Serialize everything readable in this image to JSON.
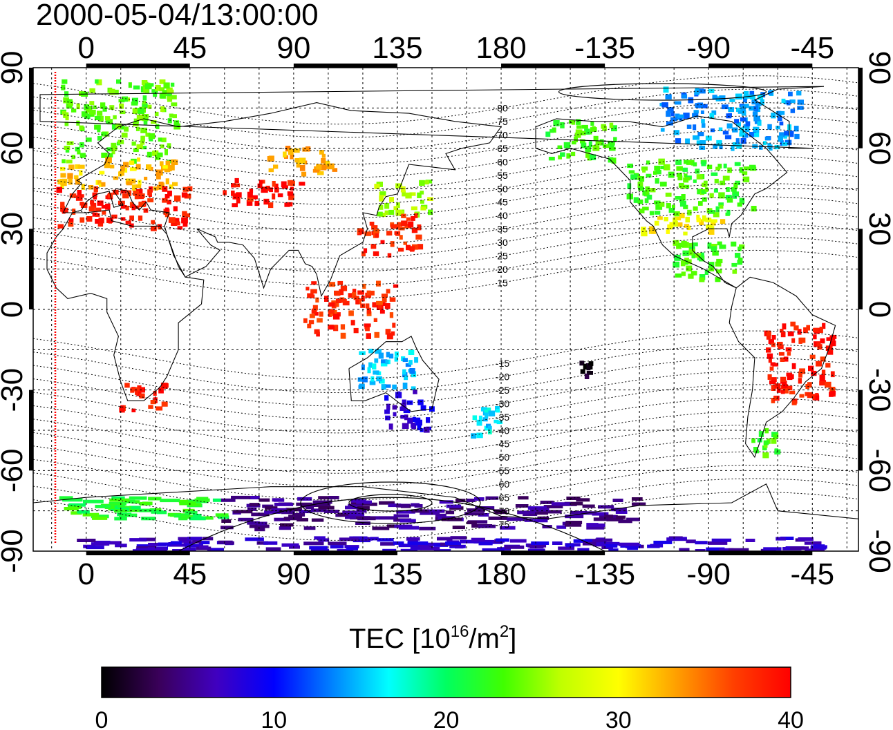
{
  "title": "2000-05-04/13:00:00",
  "colorbar": {
    "label_prefix": "TEC  [10",
    "label_exp1": "16",
    "label_mid": "/m",
    "label_exp2": "2",
    "label_suffix": "]",
    "ticks": [
      "0",
      "10",
      "20",
      "30",
      "40"
    ],
    "range": [
      0,
      40
    ],
    "colors": [
      "#000000",
      "#3a005a",
      "#4000c0",
      "#0000ff",
      "#0080ff",
      "#00ffff",
      "#00ff60",
      "#40ff00",
      "#c0ff00",
      "#ffff00",
      "#ffa000",
      "#ff4000",
      "#ff0000"
    ]
  },
  "map": {
    "lon_ticks_top": [
      "0",
      "45",
      "90",
      "135",
      "180",
      "-135",
      "-90",
      "-45"
    ],
    "lon_ticks_bottom": [
      "0",
      "45",
      "90",
      "135",
      "180",
      "-135",
      "-90",
      "-45"
    ],
    "lat_ticks_left": [
      "90",
      "60",
      "30",
      "0",
      "-30",
      "-60",
      "-90"
    ],
    "lat_ticks_right": [
      "90",
      "60",
      "30",
      "0",
      "-30",
      "-60",
      "-90"
    ],
    "magnetic_latitude_labels": [
      "80",
      "75",
      "70",
      "65",
      "60",
      "55",
      "50",
      "45",
      "40",
      "35",
      "30",
      "25",
      "20",
      "15",
      "-15",
      "-20",
      "-25",
      "-30",
      "-35",
      "-40",
      "-45",
      "-50",
      "-55",
      "-60",
      "-65",
      "-70",
      "-75"
    ],
    "terminator_color": "#ff0000",
    "clusters": [
      {
        "region": "Europe (north)",
        "lon": [
          -10,
          40
        ],
        "lat": [
          55,
          85
        ],
        "tec": 24
      },
      {
        "region": "Europe (central)",
        "lon": [
          -12,
          40
        ],
        "lat": [
          45,
          56
        ],
        "tec": 32
      },
      {
        "region": "Europe (south)",
        "lon": [
          -12,
          45
        ],
        "lat": [
          30,
          45
        ],
        "tec": 39
      },
      {
        "region": "Central Asia",
        "lon": [
          60,
          95
        ],
        "lat": [
          38,
          48
        ],
        "tec": 39
      },
      {
        "region": "Siberia",
        "lon": [
          80,
          110
        ],
        "lat": [
          50,
          60
        ],
        "tec": 33
      },
      {
        "region": "Japan",
        "lon": [
          125,
          150
        ],
        "lat": [
          35,
          48
        ],
        "tec": 26
      },
      {
        "region": "China",
        "lon": [
          118,
          145
        ],
        "lat": [
          20,
          35
        ],
        "tec": 38
      },
      {
        "region": "SE Asia",
        "lon": [
          95,
          135
        ],
        "lat": [
          -10,
          10
        ],
        "tec": 38
      },
      {
        "region": "Southern Africa",
        "lon": [
          15,
          35
        ],
        "lat": [
          -38,
          -28
        ],
        "tec": 39
      },
      {
        "region": "Australia (north)",
        "lon": [
          118,
          145
        ],
        "lat": [
          -30,
          -15
        ],
        "tec": 15
      },
      {
        "region": "Australia (south)",
        "lon": [
          130,
          150
        ],
        "lat": [
          -45,
          -30
        ],
        "tec": 8
      },
      {
        "region": "New Zealand",
        "lon": [
          166,
          180
        ],
        "lat": [
          -48,
          -35
        ],
        "tec": 16
      },
      {
        "region": "Alaska",
        "lon": [
          -160,
          -130
        ],
        "lat": [
          55,
          70
        ],
        "tec": 23
      },
      {
        "region": "Canada (north)",
        "lon": [
          -110,
          -50
        ],
        "lat": [
          60,
          82
        ],
        "tec": 14
      },
      {
        "region": "North America",
        "lon": [
          -125,
          -70
        ],
        "lat": [
          35,
          55
        ],
        "tec": 23
      },
      {
        "region": "Southern US",
        "lon": [
          -120,
          -80
        ],
        "lat": [
          28,
          35
        ],
        "tec": 30
      },
      {
        "region": "Central America",
        "lon": [
          -105,
          -75
        ],
        "lat": [
          10,
          25
        ],
        "tec": 23
      },
      {
        "region": "Brazil",
        "lon": [
          -65,
          -35
        ],
        "lat": [
          -35,
          -5
        ],
        "tec": 39
      },
      {
        "region": "Patagonia",
        "lon": [
          -75,
          -60
        ],
        "lat": [
          -55,
          -45
        ],
        "tec": 23
      },
      {
        "region": "Pacific (south)",
        "lon": [
          -145,
          -140
        ],
        "lat": [
          -25,
          -20
        ],
        "tec": 1
      },
      {
        "region": "Antarctica (edge)",
        "lon": [
          -10,
          60
        ],
        "lat": [
          -78,
          -70
        ],
        "tec": 22
      },
      {
        "region": "Antarctica (pacific)",
        "lon": [
          60,
          240
        ],
        "lat": [
          -82,
          -70
        ],
        "tec": 5
      },
      {
        "region": "Antarctica (interior)",
        "lon": [
          0,
          320
        ],
        "lat": [
          -90,
          -85
        ],
        "tec": 7
      }
    ]
  }
}
